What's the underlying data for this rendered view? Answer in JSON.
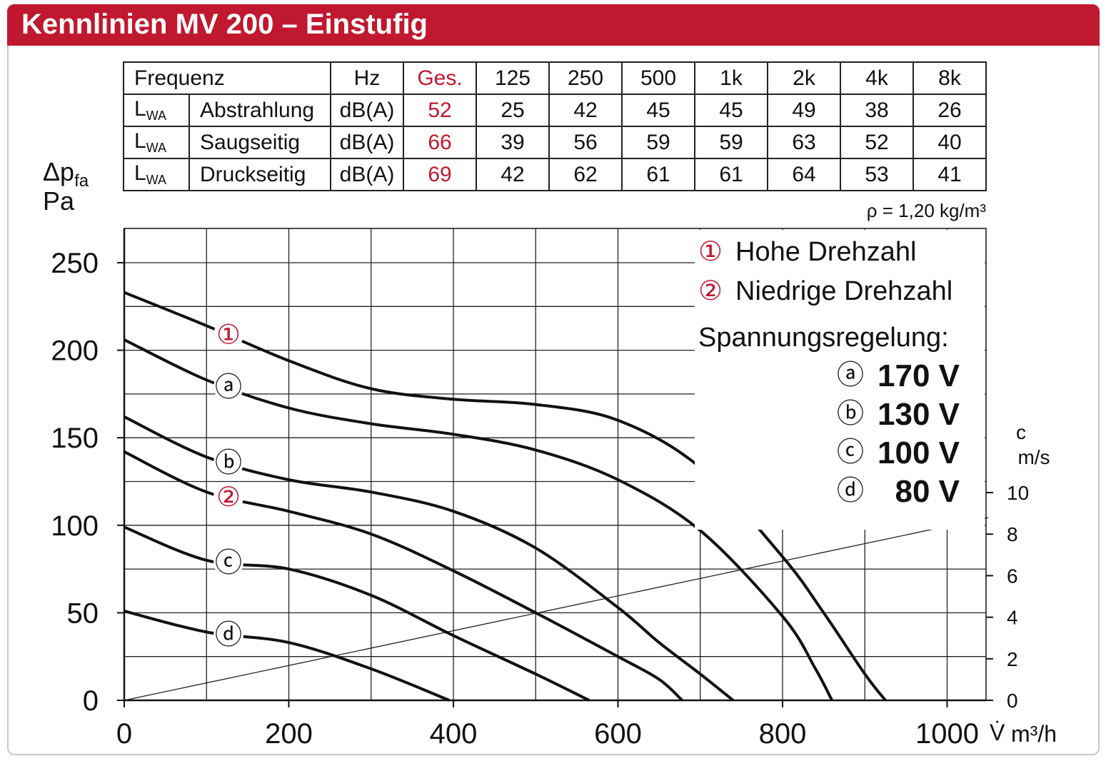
{
  "title": "Kennlinien MV 200 – Einstufig",
  "table": {
    "header": [
      "Frequenz",
      "Hz",
      "Ges.",
      "125",
      "250",
      "500",
      "1k",
      "2k",
      "4k",
      "8k"
    ],
    "rows": [
      {
        "lwa_main": "L",
        "lwa_sub": "WA",
        "label": "Abstrahlung",
        "unit": "dB(A)",
        "total": "52",
        "values": [
          "25",
          "42",
          "45",
          "45",
          "49",
          "38",
          "26"
        ]
      },
      {
        "lwa_main": "L",
        "lwa_sub": "WA",
        "label": "Saugseitig",
        "unit": "dB(A)",
        "total": "66",
        "values": [
          "39",
          "56",
          "59",
          "59",
          "63",
          "52",
          "40"
        ]
      },
      {
        "lwa_main": "L",
        "lwa_sub": "WA",
        "label": "Druckseitig",
        "unit": "dB(A)",
        "total": "69",
        "values": [
          "42",
          "62",
          "61",
          "61",
          "64",
          "53",
          "41"
        ]
      }
    ],
    "density_note": "ρ = 1,20 kg/m³"
  },
  "chart_data": {
    "type": "line",
    "ylabel_main": "Δp",
    "ylabel_sub": "fa",
    "ylabel_unit": "Pa",
    "xlabel_symbol": "V̇",
    "xlabel_unit": "m³/h",
    "y2label_main": "c",
    "y2label_unit": "m/s",
    "xlim": [
      0,
      1050
    ],
    "ylim": [
      0,
      270
    ],
    "y2lim": [
      0,
      10
    ],
    "xticks": [
      "0",
      "200",
      "400",
      "600",
      "800",
      "1000"
    ],
    "yticks": [
      "0",
      "50",
      "100",
      "150",
      "200",
      "250"
    ],
    "y2ticks": [
      "0",
      "2",
      "4",
      "6",
      "8",
      "10"
    ],
    "grid": true,
    "legend": {
      "items": [
        {
          "marker": "①",
          "text": "Hohe Drehzahl",
          "color": "#c0182f"
        },
        {
          "marker": "②",
          "text": "Niedrige Drehzahl",
          "color": "#c0182f"
        }
      ],
      "regulation_title": "Spannungsregelung:",
      "voltages": [
        {
          "marker": "ⓐ",
          "value": "170 V"
        },
        {
          "marker": "ⓑ",
          "value": "130 V"
        },
        {
          "marker": "ⓒ",
          "value": "100 V"
        },
        {
          "marker": "ⓓ",
          "value": "80 V"
        }
      ]
    },
    "series": [
      {
        "marker": "①",
        "color": "#c0182f",
        "x": [
          0,
          100,
          200,
          300,
          400,
          500,
          600,
          700,
          800,
          850,
          900,
          925
        ],
        "y": [
          233,
          214,
          194,
          178,
          172,
          169,
          160,
          133,
          82,
          50,
          15,
          0
        ]
      },
      {
        "marker": "ⓐ",
        "color": "#111111",
        "x": [
          0,
          100,
          200,
          300,
          400,
          500,
          600,
          700,
          800,
          840,
          860
        ],
        "y": [
          206,
          183,
          167,
          158,
          152,
          143,
          126,
          97,
          48,
          18,
          0
        ]
      },
      {
        "marker": "ⓑ",
        "color": "#111111",
        "x": [
          0,
          100,
          200,
          300,
          400,
          500,
          600,
          650,
          700,
          740
        ],
        "y": [
          162,
          139,
          126,
          119,
          108,
          87,
          53,
          33,
          15,
          0
        ]
      },
      {
        "marker": "②",
        "color": "#c0182f",
        "x": [
          0,
          100,
          200,
          300,
          400,
          500,
          600,
          650,
          678
        ],
        "y": [
          142,
          119,
          108,
          95,
          74,
          50,
          25,
          12,
          0
        ]
      },
      {
        "marker": "ⓒ",
        "color": "#111111",
        "x": [
          0,
          100,
          200,
          300,
          400,
          500,
          565
        ],
        "y": [
          99,
          80,
          75,
          60,
          37,
          15,
          0
        ]
      },
      {
        "marker": "ⓓ",
        "color": "#111111",
        "x": [
          0,
          100,
          200,
          300,
          395
        ],
        "y": [
          51,
          39,
          33,
          18,
          0
        ]
      }
    ],
    "velocity_line": {
      "x": [
        0,
        1050
      ],
      "c": [
        0,
        8.8
      ]
    }
  }
}
